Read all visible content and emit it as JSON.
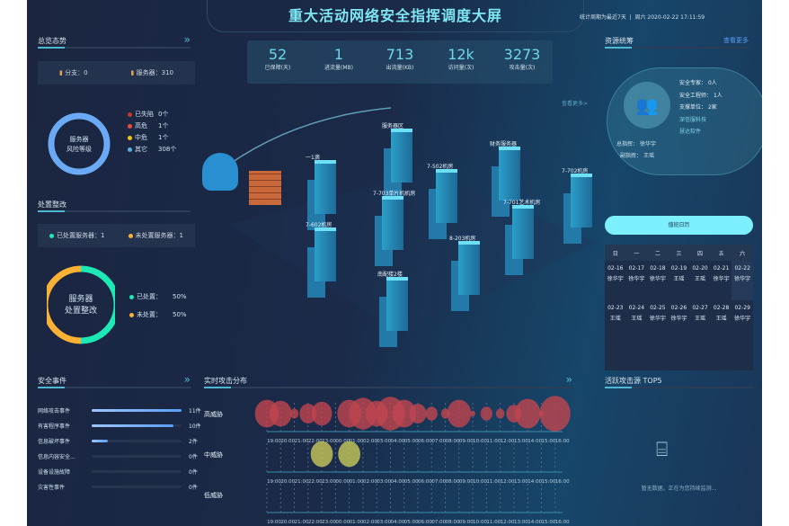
{
  "header": {
    "title": "重大活动网络安全指挥调度大屏",
    "period": "统计周期为最近7天",
    "datetime": "周六 2020-02-22 17:11:59"
  },
  "overview": {
    "title": "总览态势",
    "branch": "分支：0",
    "servers": "服务器：310",
    "donut_label": "服务器\n风险等级",
    "donut_line1": "服务器",
    "donut_line2": "风险等级",
    "legend": [
      {
        "label": "已失陷",
        "value": "0个",
        "color": "#c0392b"
      },
      {
        "label": "高危",
        "value": "1个",
        "color": "#e74c3c"
      },
      {
        "label": "中危",
        "value": "1个",
        "color": "#f1c40f"
      },
      {
        "label": "其它",
        "value": "308个",
        "color": "#5dade2"
      }
    ]
  },
  "disposal": {
    "title": "处置整改",
    "done_servers": "已处置服务器：1",
    "todo_servers": "未处置服务器：1",
    "donut_line1": "服务器",
    "donut_line2": "处置整改",
    "legend": [
      {
        "label": "已处置：",
        "value": "50%",
        "color": "#1de9b6",
        "percent": 50
      },
      {
        "label": "未处置：",
        "value": "50%",
        "color": "#f9b233",
        "percent": 50
      }
    ]
  },
  "stats": [
    {
      "value": "52",
      "label": "已保障(天)"
    },
    {
      "value": "1",
      "label": "进流量(MB)"
    },
    {
      "value": "713",
      "label": "出流量(KB)"
    },
    {
      "value": "12k",
      "label": "访问量(次)"
    },
    {
      "value": "3273",
      "label": "攻击量(次)"
    }
  ],
  "map": {
    "more": "查看更多>",
    "buildings": [
      "服务器区",
      "一1滴",
      "7-502机房",
      "财务服务器",
      "7-702机房",
      "7-703单片机机房",
      "7-701艺术机房",
      "7-602机房",
      "8-203机房",
      "南配楼2楼"
    ]
  },
  "resources": {
    "title": "资源统筹",
    "more": "查看更多",
    "expert": "安全专家：",
    "expert_v": "0人",
    "engineer": "安全工程师：",
    "engineer_v": "1人",
    "support": "支撑单位：",
    "support_v": "2家",
    "org1": "深信服科技",
    "org2": "慧达软件",
    "commander": "总指挥：",
    "commander_v": "徐华宇",
    "vice": "副指挥：",
    "vice_v": "王瑶"
  },
  "duty": {
    "button": "值班日历",
    "weekdays": [
      "日",
      "一",
      "二",
      "三",
      "四",
      "五",
      "六"
    ],
    "weeks": [
      [
        {
          "d": "02-16",
          "p": "徐华宇"
        },
        {
          "d": "02-17",
          "p": "徐华宇"
        },
        {
          "d": "02-18",
          "p": "徐华宇"
        },
        {
          "d": "02-19",
          "p": "王瑶"
        },
        {
          "d": "02-20",
          "p": "王瑶"
        },
        {
          "d": "02-21",
          "p": "徐华宇"
        },
        {
          "d": "02-22",
          "p": "徐华宇"
        }
      ],
      [
        {
          "d": "02-23",
          "p": "王瑶"
        },
        {
          "d": "02-24",
          "p": "王瑶"
        },
        {
          "d": "02-25",
          "p": "徐华宇"
        },
        {
          "d": "02-26",
          "p": "徐华宇"
        },
        {
          "d": "02-27",
          "p": "王瑶"
        },
        {
          "d": "02-28",
          "p": "王瑶"
        },
        {
          "d": "02-29",
          "p": "徐华宇"
        }
      ]
    ]
  },
  "events": {
    "title": "安全事件",
    "items": [
      {
        "label": "网络攻击事件",
        "value": "11件",
        "n": 11
      },
      {
        "label": "有害程序事件",
        "value": "10件",
        "n": 10
      },
      {
        "label": "信息破坏事件",
        "value": "2件",
        "n": 2
      },
      {
        "label": "信息内容安全...",
        "value": "0件",
        "n": 0
      },
      {
        "label": "设备设施故障",
        "value": "0件",
        "n": 0
      },
      {
        "label": "灾害性事件",
        "value": "0件",
        "n": 0
      }
    ]
  },
  "tops": {
    "title": "活跃攻击源 TOP5",
    "empty": "暂无数据，正在为您持续监测..."
  },
  "chart_data": {
    "type": "scatter",
    "title": "实时攻击分布",
    "categories": [
      "19:00",
      "20:00",
      "21:00",
      "22:00",
      "23:00",
      "00:00",
      "01:00",
      "02:00",
      "03:00",
      "04:00",
      "05:00",
      "06:00",
      "07:00",
      "08:00",
      "09:00",
      "10:00",
      "11:00",
      "12:00",
      "13:00",
      "14:00",
      "15:00",
      "16:00"
    ],
    "series": [
      {
        "name": "高威胁",
        "color": "#c0454f",
        "values": [
          14,
          13,
          5,
          10,
          12,
          0,
          14,
          16,
          13,
          17,
          14,
          10,
          7,
          5,
          14,
          3,
          7,
          5,
          9,
          15,
          3,
          18
        ]
      },
      {
        "name": "中威胁",
        "color": "#c8c95a",
        "values": [
          0,
          0,
          0,
          0,
          13,
          0,
          13,
          0,
          0,
          0,
          0,
          0,
          0,
          0,
          0,
          0,
          0,
          0,
          0,
          0,
          0,
          0
        ]
      },
      {
        "name": "低威胁",
        "color": "#5dade2",
        "values": [
          0,
          0,
          0,
          0,
          0,
          0,
          0,
          0,
          0,
          0,
          0,
          0,
          0,
          0,
          0,
          0,
          0,
          0,
          0,
          0,
          0,
          0
        ]
      }
    ]
  }
}
